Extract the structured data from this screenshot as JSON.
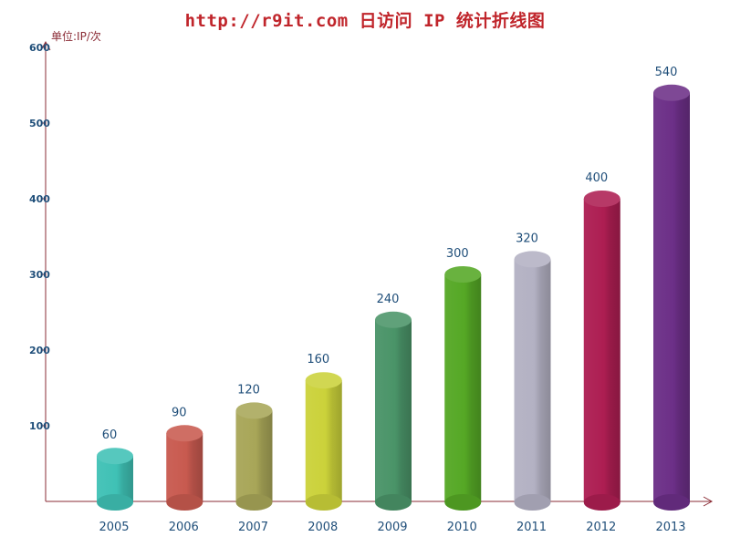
{
  "chart_data": {
    "type": "bar",
    "title": "http://r9it.com 日访问 IP 统计折线图",
    "unit_label": "单位:IP/次",
    "categories": [
      "2005",
      "2006",
      "2007",
      "2008",
      "2009",
      "2010",
      "2011",
      "2012",
      "2013"
    ],
    "values": [
      60,
      90,
      120,
      160,
      240,
      300,
      320,
      400,
      540
    ],
    "ylim": [
      0,
      600
    ],
    "yticks": [
      "100",
      "200",
      "300",
      "400",
      "500",
      "600"
    ],
    "grid": false,
    "colors": [
      "#3fc1b5",
      "#c85a4f",
      "#a8a658",
      "#cbd23a",
      "#4a9468",
      "#55a825",
      "#b3b1c3",
      "#ad1e52",
      "#6c2f87"
    ],
    "axis_color": "#8a2b35"
  }
}
